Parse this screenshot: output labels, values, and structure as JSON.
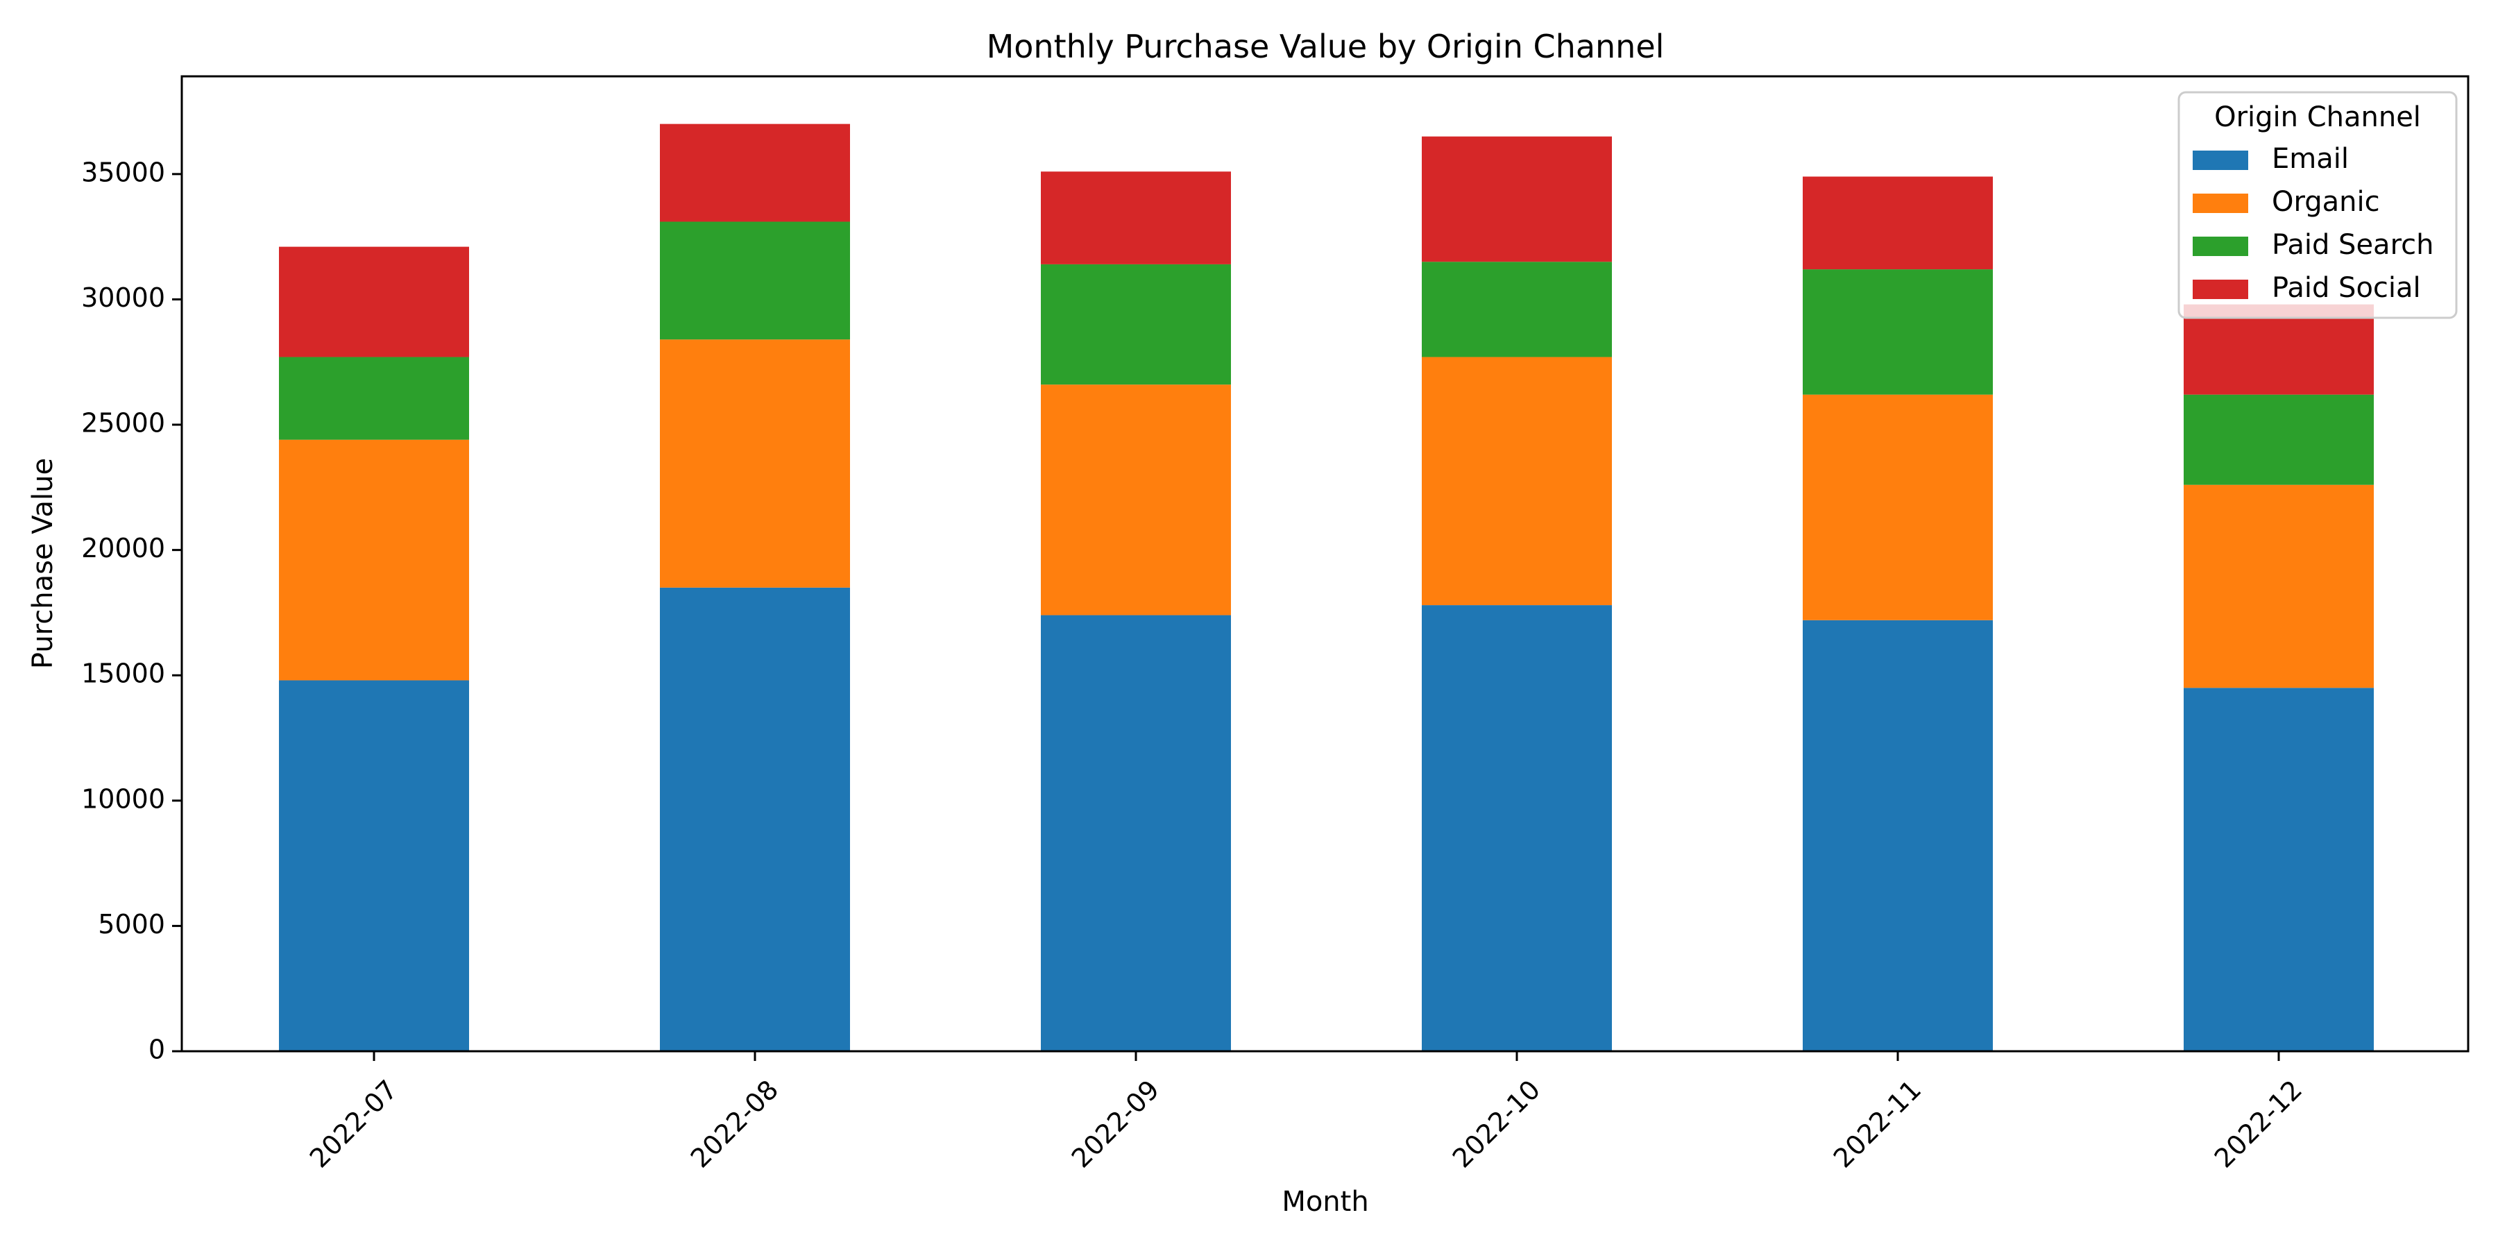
{
  "chart_data": {
    "type": "bar",
    "stacked": true,
    "title": "Monthly Purchase Value by Origin Channel",
    "xlabel": "Month",
    "ylabel": "Purchase Value",
    "categories": [
      "2022-07",
      "2022-08",
      "2022-09",
      "2022-10",
      "2022-11",
      "2022-12"
    ],
    "ylim": [
      0,
      38900
    ],
    "yticks": [
      0,
      5000,
      10000,
      15000,
      20000,
      25000,
      30000,
      35000
    ],
    "grid": false,
    "legend": {
      "title": "Origin Channel",
      "placement": "top-right"
    },
    "series": [
      {
        "name": "Email",
        "color": "#1f77b4",
        "values": [
          14800,
          18500,
          17400,
          17800,
          17200,
          14500
        ]
      },
      {
        "name": "Organic",
        "color": "#ff7f0e",
        "values": [
          9600,
          9900,
          9200,
          9900,
          9000,
          8100
        ]
      },
      {
        "name": "Paid Search",
        "color": "#2ca02c",
        "values": [
          3300,
          4700,
          4800,
          3800,
          5000,
          3600
        ]
      },
      {
        "name": "Paid Social",
        "color": "#d62728",
        "values": [
          4400,
          3900,
          3700,
          5000,
          3700,
          3600
        ]
      }
    ]
  }
}
